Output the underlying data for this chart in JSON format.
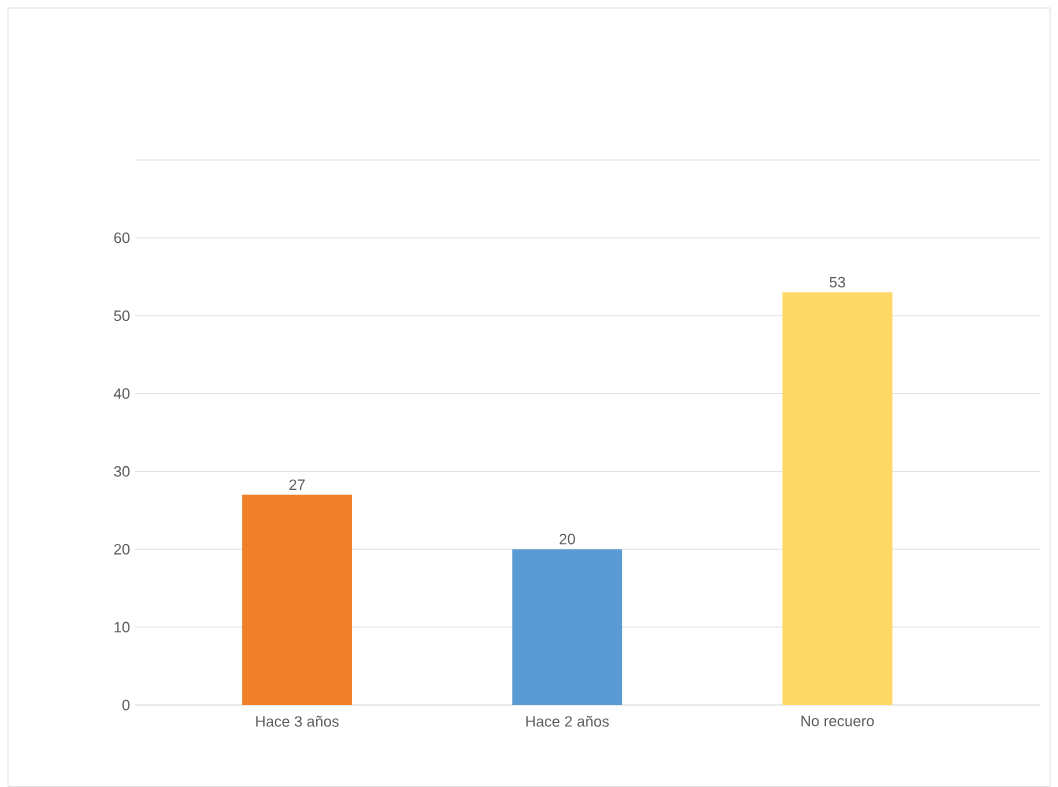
{
  "chart_data": {
    "type": "bar",
    "categories": [
      "Hace 3 años",
      "Hace 2 años",
      "No recuero"
    ],
    "values": [
      27,
      20,
      53
    ],
    "colors": [
      "#f07f29",
      "#5b9bd5",
      "#ffd966"
    ],
    "ylim": [
      0,
      70
    ],
    "yticks": [
      0,
      10,
      20,
      30,
      40,
      50,
      60,
      {
        "value": 70,
        "label": null
      }
    ],
    "grid": "y",
    "data_labels": true
  }
}
